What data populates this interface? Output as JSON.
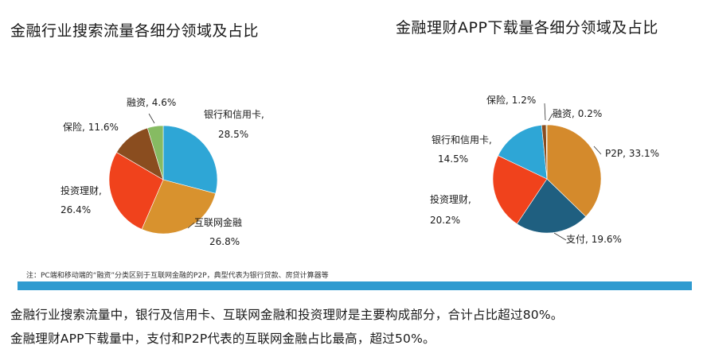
{
  "chart_data": [
    {
      "type": "pie",
      "title": "金融行业搜索流量各细分领域及占比",
      "slices": [
        {
          "name": "银行和信用卡,",
          "label_value": "28.5%",
          "value": 28.5,
          "color": "#2ea6d6"
        },
        {
          "name": "互联网金融",
          "label_value": "26.8%",
          "value": 26.8,
          "color": "#d8922e"
        },
        {
          "name": "投资理财,",
          "label_value": "26.4%",
          "value": 26.4,
          "color": "#f0421c"
        },
        {
          "name": "保险,",
          "label_value": "11.6%",
          "value": 11.6,
          "color": "#8a4d1f"
        },
        {
          "name": "融资,",
          "label_value": "4.6%",
          "value": 4.6,
          "color": "#86bb62"
        }
      ]
    },
    {
      "type": "pie",
      "title": "金融理财APP下载量各细分领域及占比",
      "slices": [
        {
          "name": "P2P,",
          "label_value": "33.1%",
          "value": 33.1,
          "color": "#d48a2c"
        },
        {
          "name": "支付,",
          "label_value": "19.6%",
          "value": 19.6,
          "color": "#1f5f80"
        },
        {
          "name": "投资理财,",
          "label_value": "20.2%",
          "value": 20.2,
          "color": "#f0421c"
        },
        {
          "name": "银行和信用卡,",
          "label_value": "14.5%",
          "value": 14.5,
          "color": "#2ea6d6"
        },
        {
          "name": "保险,",
          "label_value": "1.2%",
          "value": 1.2,
          "color": "#8a4d1f"
        },
        {
          "name": "融资,",
          "label_value": "0.2%",
          "value": 0.2,
          "color": "#86bb62"
        }
      ]
    }
  ],
  "footnote": "注：PC端和移动端的“融资”分类区别于互联网金融的P2P，典型代表为银行贷款、房贷计算器等",
  "summary": [
    "金融行业搜索流量中，银行及信用卡、互联网金融和投资理财是主要构成部分，合计占比超过80%。",
    "金融理财APP下载量中，支付和P2P代表的互联网金融占比最高，超过50%。"
  ]
}
